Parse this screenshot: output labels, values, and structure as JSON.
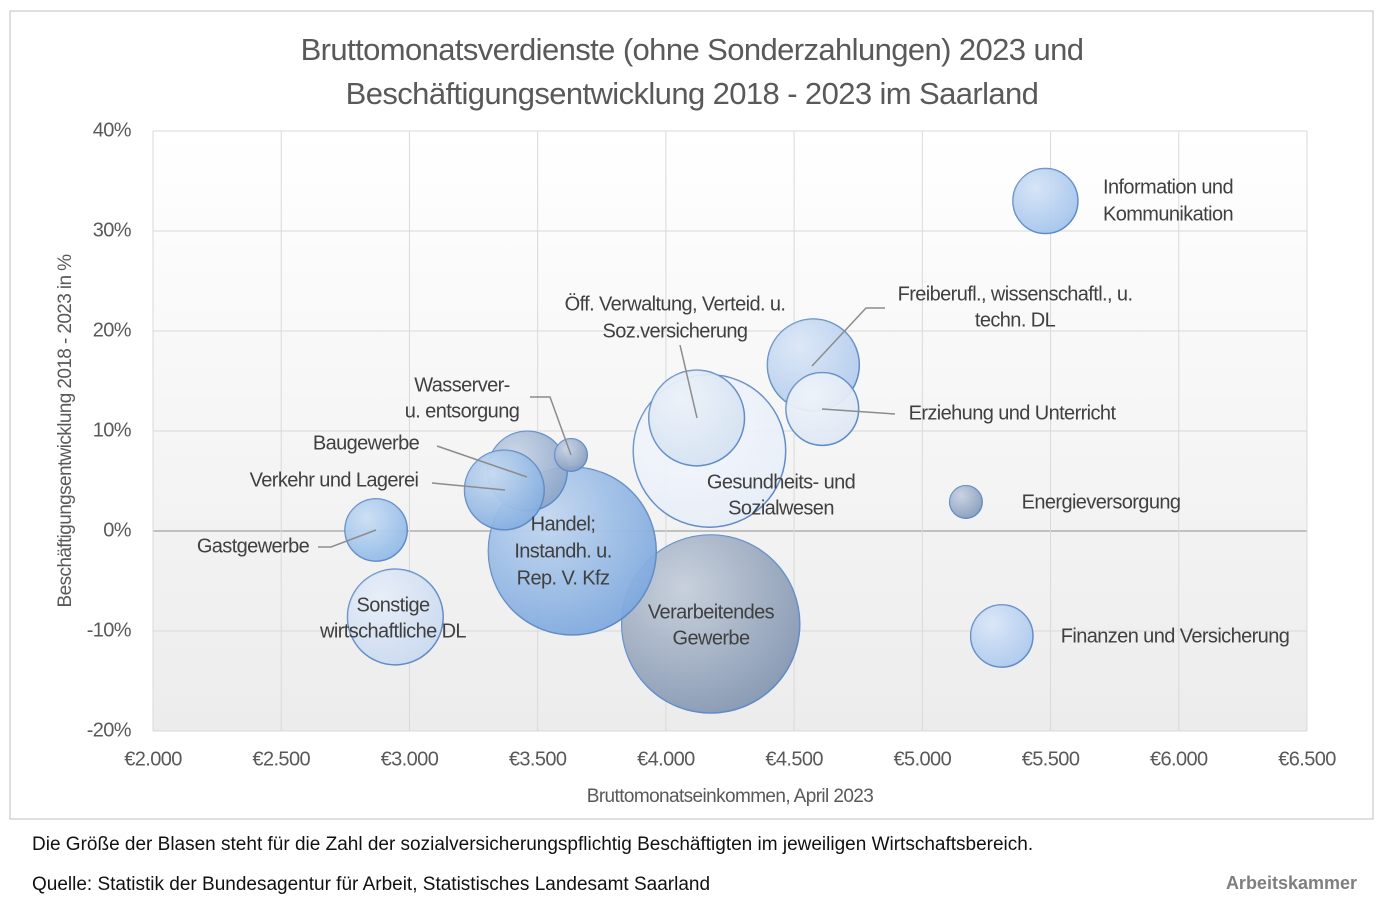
{
  "chart_data": {
    "type": "bubble",
    "title": [
      "Bruttomonatsverdienste (ohne Sonderzahlungen) 2023 und",
      "Beschäftigungsentwicklung 2018 - 2023 im Saarland"
    ],
    "xlabel": "Bruttomonatseinkommen, April 2023",
    "ylabel": "Beschäftigungsentwicklung 2018 - 2023 in %",
    "xlim": [
      2000,
      6500
    ],
    "xticks": [
      {
        "value": 2000,
        "label": "€2.000"
      },
      {
        "value": 2500,
        "label": "€2.500"
      },
      {
        "value": 3000,
        "label": "€3.000"
      },
      {
        "value": 3500,
        "label": "€3.500"
      },
      {
        "value": 4000,
        "label": "€4.000"
      },
      {
        "value": 4500,
        "label": "€4.500"
      },
      {
        "value": 5000,
        "label": "€5.000"
      },
      {
        "value": 5500,
        "label": "€5.500"
      },
      {
        "value": 6000,
        "label": "€6.000"
      },
      {
        "value": 6500,
        "label": "€6.500"
      }
    ],
    "ylim": [
      -20,
      40
    ],
    "yticks": [
      {
        "value": -20,
        "label": "-20%"
      },
      {
        "value": -10,
        "label": "-10%"
      },
      {
        "value": 0,
        "label": "0%"
      },
      {
        "value": 10,
        "label": "10%"
      },
      {
        "value": 20,
        "label": "20%"
      },
      {
        "value": 30,
        "label": "30%"
      },
      {
        "value": 40,
        "label": "40%"
      }
    ],
    "grid": true,
    "points": [
      {
        "label": [
          "Information und",
          "Kommunikation"
        ],
        "x": 5480,
        "y": 33.0,
        "size": 12,
        "color": "#9dc0ea"
      },
      {
        "label": [
          "Freiberufl., wissenschaftl., u.",
          "techn. DL"
        ],
        "x": 4575,
        "y": 16.6,
        "size": 24,
        "color": "#adc8ec"
      },
      {
        "label": [
          "Erziehung und Unterricht"
        ],
        "x": 4610,
        "y": 12.2,
        "size": 15,
        "color": "#dbe5f3"
      },
      {
        "label": [
          "Öff. Verwaltung, Verteid. u.",
          "Soz.versicherung"
        ],
        "x": 4120,
        "y": 11.3,
        "size": 26,
        "color": "#d3dff1"
      },
      {
        "label": [
          "Gesundheits- und",
          "Sozialwesen"
        ],
        "x": 4170,
        "y": 8.0,
        "size": 66,
        "color": "#e6edf7"
      },
      {
        "label": [
          "Wasserver-",
          "u. entsorgung"
        ],
        "x": 3630,
        "y": 7.6,
        "size": 3,
        "color": "#7f98bd"
      },
      {
        "label": [
          "Baugewerbe"
        ],
        "x": 3460,
        "y": 6.0,
        "size": 18,
        "color": "#86a0c6"
      },
      {
        "label": [
          "Verkehr und Lagerei"
        ],
        "x": 3370,
        "y": 4.1,
        "size": 18,
        "color": "#7eaade"
      },
      {
        "label": [
          "Handel;",
          "Instandh. u.",
          "Rep. V. Kfz"
        ],
        "x": 3635,
        "y": -2.0,
        "size": 80,
        "color": "#76a4dc"
      },
      {
        "label": [
          "Energieversorgung"
        ],
        "x": 5170,
        "y": 2.9,
        "size": 3,
        "color": "#8096b8"
      },
      {
        "label": [
          "Gastgewerbe"
        ],
        "x": 2870,
        "y": 0.1,
        "size": 11,
        "color": "#8ab5e6"
      },
      {
        "label": [
          "Sonstige",
          "wirtschaftliche DL"
        ],
        "x": 2945,
        "y": -8.6,
        "size": 26,
        "color": "#c8d8f0"
      },
      {
        "label": [
          "Verarbeitendes",
          "Gewerbe"
        ],
        "x": 4175,
        "y": -9.3,
        "size": 90,
        "color": "#7d90ac"
      },
      {
        "label": [
          "Finanzen und Versicherung"
        ],
        "x": 5310,
        "y": -10.5,
        "size": 11,
        "color": "#a8c6ee"
      }
    ]
  },
  "footer": {
    "note": "Die Größe der Blasen steht für die Zahl der sozialversicherungspflichtig Beschäftigten im jeweiligen Wirtschaftsbereich.",
    "source": "Quelle: Statistik der Bundesagentur für Arbeit, Statistisches Landesamt Saarland",
    "brand": "Arbeitskammer"
  }
}
